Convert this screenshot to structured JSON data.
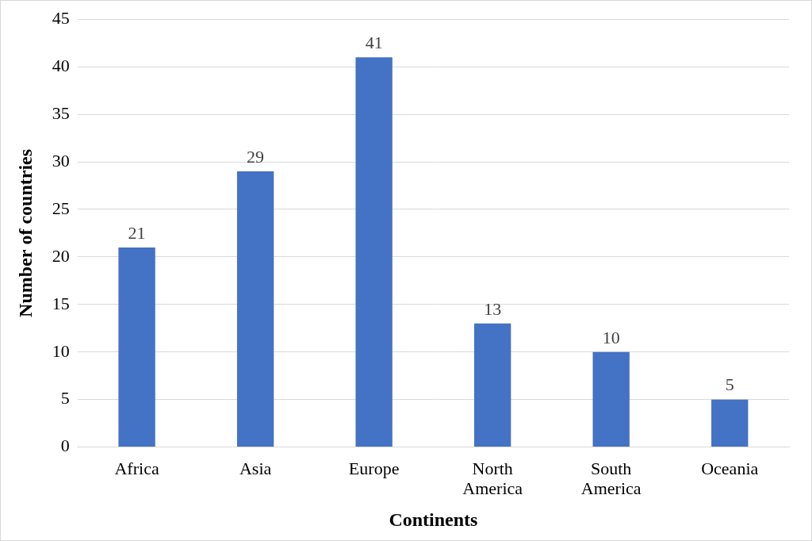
{
  "chart_data": {
    "type": "bar",
    "x_label": "Continents",
    "y_label": "Number of countries",
    "categories": [
      "Africa",
      "Asia",
      "Europe",
      "North America",
      "South America",
      "Oceania"
    ],
    "values": [
      21,
      29,
      41,
      13,
      10,
      5
    ],
    "color": "#4472c4",
    "ylim": [
      0,
      45
    ],
    "yticks": [
      0,
      5,
      10,
      15,
      20,
      25,
      30,
      35,
      40,
      45
    ],
    "grid": true,
    "data_labels": true
  }
}
